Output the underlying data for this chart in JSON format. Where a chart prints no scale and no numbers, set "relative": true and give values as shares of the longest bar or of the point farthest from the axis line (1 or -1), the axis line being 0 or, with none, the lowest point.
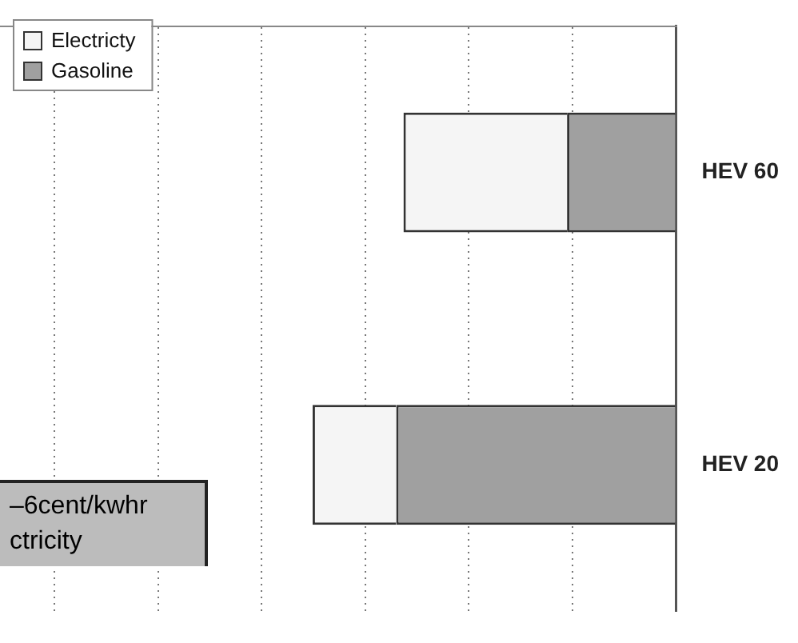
{
  "chart_data": {
    "type": "bar",
    "orientation": "horizontal",
    "categories": [
      "HEV 60",
      "HEV 20"
    ],
    "stacked": true,
    "relative": true,
    "grid": "x",
    "legend": "top left",
    "series": [
      {
        "name": "Gasoline",
        "color": "#a0a0a0",
        "values": [
          0.3,
          0.77
        ]
      },
      {
        "name": "Electricty",
        "color": "#f5f5f5",
        "values": [
          0.45,
          0.23
        ]
      }
    ],
    "annotations": [
      "–6cent/kwhr",
      "ctricity"
    ]
  }
}
